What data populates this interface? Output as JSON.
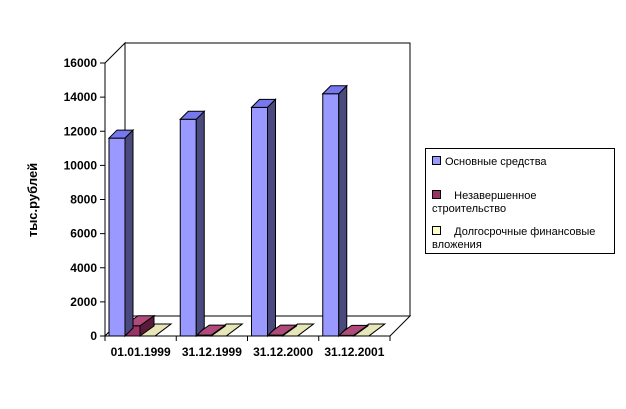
{
  "chart_data": {
    "type": "bar",
    "title": "",
    "xlabel": "",
    "ylabel": "тыс.рублей",
    "categories": [
      "01.01.1999",
      "31.12.1999",
      "31.12.2000",
      "31.12.2001"
    ],
    "yticks": [
      "0",
      "2000",
      "4000",
      "6000",
      "8000",
      "10000",
      "12000",
      "14000",
      "16000"
    ],
    "ylim": [
      0,
      16000
    ],
    "grid": false,
    "legend_position": "right",
    "series": [
      {
        "name": "Основные средства",
        "values": [
          11600,
          12700,
          13400,
          14200
        ],
        "color": "#9999ff",
        "dark": "#4a4a7e",
        "top": "#7777ee"
      },
      {
        "name": "Незавершенное строительство",
        "values": [
          600,
          50,
          50,
          40
        ],
        "color": "#993366",
        "dark": "#5a1a3c",
        "top": "#b04a7a"
      },
      {
        "name": "Долгосрочные финансовые вложения",
        "values": [
          0,
          0,
          0,
          0
        ],
        "color": "#ffffcc",
        "dark": "#c8c8a0",
        "top": "#e6e6b8"
      }
    ]
  },
  "legend": {
    "items": [
      {
        "label": "Основные средства"
      },
      {
        "label": "   Незавершенное\nстроительство"
      },
      {
        "label": "   Долгосрочные финансовые\nвложения"
      }
    ]
  }
}
